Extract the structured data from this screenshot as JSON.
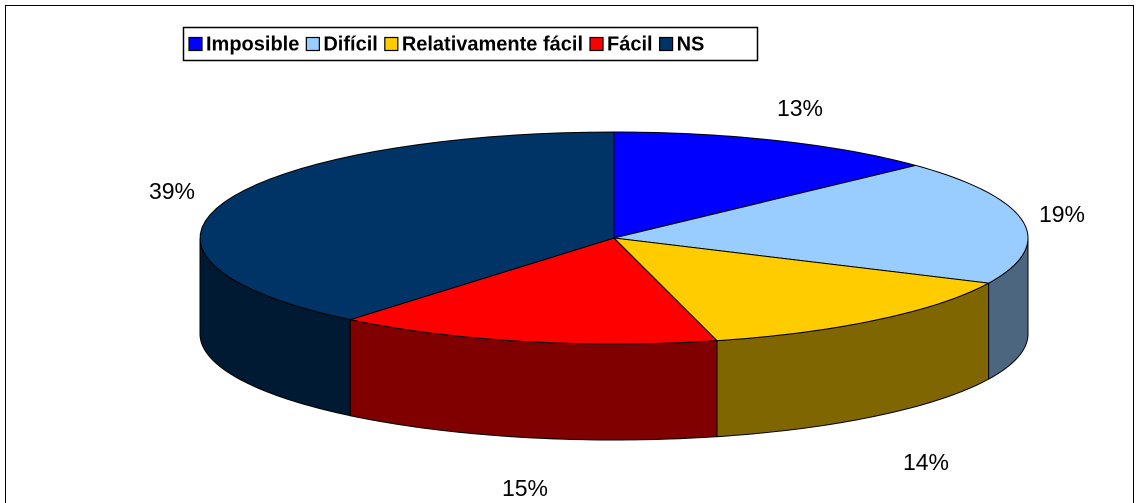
{
  "chart_data": {
    "type": "pie",
    "categories": [
      "Imposible",
      "Difícil",
      "Relativamente fácil",
      "Fácil",
      "NS"
    ],
    "values": [
      13,
      19,
      14,
      15,
      39
    ],
    "value_labels": [
      "13%",
      "19%",
      "14%",
      "15%",
      "39%"
    ],
    "colors": [
      "#0000ff",
      "#99ccff",
      "#ffcc00",
      "#ff0000",
      "#003366"
    ],
    "legend": "top"
  }
}
